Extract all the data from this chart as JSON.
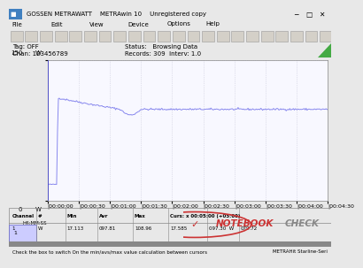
{
  "title": "GOSSEN METRAWATT    METRAwin 10    Unregistered copy",
  "tag_off": "Tag: OFF",
  "chan": "Chan: 123456789",
  "status": "Status:   Browsing Data",
  "records": "Records: 309  Interv: 1.0",
  "y_max": 150,
  "y_min": 0,
  "y_label": "W",
  "x_ticks": [
    "|00:00:00",
    "|00:00:30",
    "|00:01:00",
    "|00:01:30",
    "|00:02:00",
    "|00:02:30",
    "|00:03:00",
    "|00:03:30",
    "|00:04:00",
    "|00:04:30"
  ],
  "x_label_left": "H4:MM:SS",
  "grid_color": "#c8c8d8",
  "bg_color": "#e8e8e8",
  "plot_bg": "#f8f8ff",
  "line_color": "#8888ee",
  "table_headers": [
    "Channel",
    "#",
    "Min",
    "Avr",
    "Max",
    "Curs: x 00:05:00 (+05:00)"
  ],
  "table_row": [
    "1",
    "W",
    "17.113",
    "097.81",
    "108.96",
    "17.585",
    "097.30  W",
    "079.72"
  ],
  "cursor_label": "Curs: x 00:05:00 (+05:00)",
  "bottom_left": "Check the box to switch On the min/avs/max value calculation between cursors",
  "bottom_right": "METRAHit Starline-Seri",
  "spike_time": 10,
  "spike_value": 109,
  "stable_value": 97.3,
  "idle_value": 17.1,
  "total_seconds": 270,
  "nb_check_color": "#cc3333",
  "nb_check_gray": "#888888",
  "title_bg": "#e8e8e8",
  "title_fg": "#000000",
  "toolbar_bg": "#d8d8d8"
}
